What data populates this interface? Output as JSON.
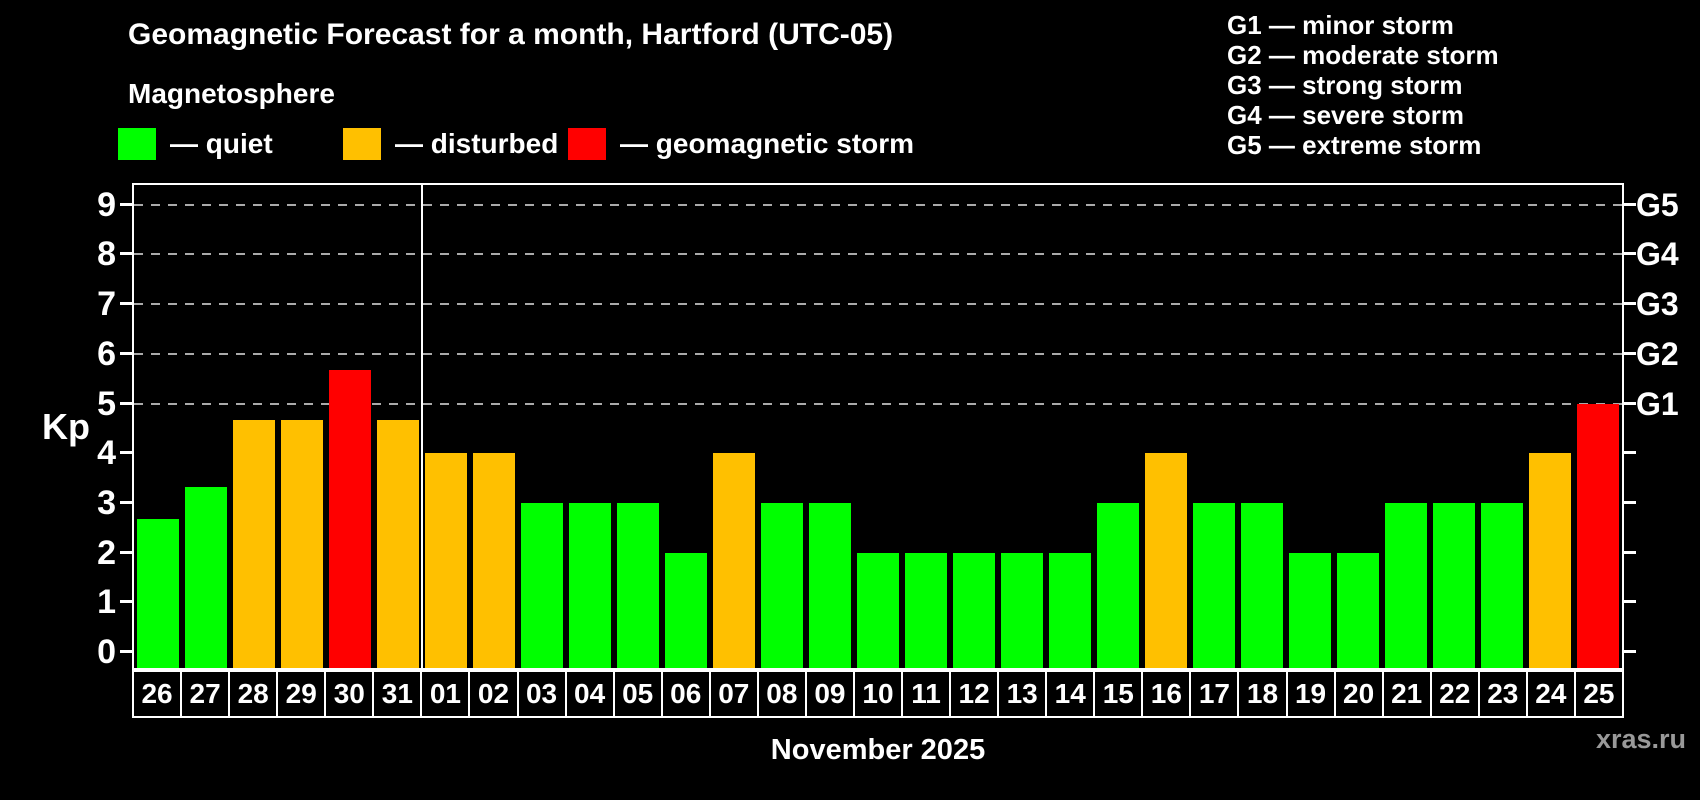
{
  "title": "Geomagnetic Forecast for a month, Hartford (UTC-05)",
  "subtitle": "Magnetosphere",
  "legend": {
    "items": [
      {
        "label": "— quiet",
        "status": "quiet"
      },
      {
        "label": "— disturbed",
        "status": "disturbed"
      },
      {
        "label": "— geomagnetic storm",
        "status": "storm"
      }
    ]
  },
  "g_legend": [
    "G1 — minor storm",
    "G2 — moderate storm",
    "G3 — strong storm",
    "G4 — severe storm",
    "G5 — extreme storm"
  ],
  "colors": {
    "quiet": "#00ff00",
    "disturbed": "#ffc000",
    "storm": "#ff0000",
    "grid": "#aaaaaa",
    "axis": "#ffffff",
    "watermark": "#999999"
  },
  "axes": {
    "y_label": "Kp",
    "kp_ticks": [
      0,
      1,
      2,
      3,
      4,
      5,
      6,
      7,
      8,
      9
    ],
    "g_labels": [
      {
        "kp": 5,
        "label": "G1"
      },
      {
        "kp": 6,
        "label": "G2"
      },
      {
        "kp": 7,
        "label": "G3"
      },
      {
        "kp": 8,
        "label": "G4"
      },
      {
        "kp": 9,
        "label": "G5"
      }
    ],
    "x_label": "November 2025"
  },
  "watermark": "xras.ru",
  "chart_data": {
    "type": "bar",
    "title": "Geomagnetic Forecast for a month, Hartford (UTC-05)",
    "subtitle": "Magnetosphere",
    "categories": [
      "26",
      "27",
      "28",
      "29",
      "30",
      "31",
      "01",
      "02",
      "03",
      "04",
      "05",
      "06",
      "07",
      "08",
      "09",
      "10",
      "11",
      "12",
      "13",
      "14",
      "15",
      "16",
      "17",
      "18",
      "19",
      "20",
      "21",
      "22",
      "23",
      "24",
      "25"
    ],
    "values": [
      2.67,
      3.33,
      4.67,
      4.67,
      5.67,
      4.67,
      4,
      4,
      3,
      3,
      3,
      2,
      4,
      3,
      3,
      2,
      2,
      2,
      2,
      2,
      3,
      4,
      3,
      3,
      2,
      2,
      3,
      3,
      3,
      4,
      5
    ],
    "status": [
      "quiet",
      "quiet",
      "disturbed",
      "disturbed",
      "storm",
      "disturbed",
      "disturbed",
      "disturbed",
      "quiet",
      "quiet",
      "quiet",
      "quiet",
      "disturbed",
      "quiet",
      "quiet",
      "quiet",
      "quiet",
      "quiet",
      "quiet",
      "quiet",
      "quiet",
      "disturbed",
      "quiet",
      "quiet",
      "quiet",
      "quiet",
      "quiet",
      "quiet",
      "quiet",
      "disturbed",
      "storm"
    ],
    "xlabel": "November 2025",
    "ylabel": "Kp",
    "ylim": [
      0,
      9
    ],
    "gridlines_at": [
      5,
      6,
      7,
      8,
      9
    ],
    "separator_after_index": 5,
    "legend_position": "top",
    "grid": "horizontal dashed lines at Kp 5-9 (G1-G5)"
  }
}
